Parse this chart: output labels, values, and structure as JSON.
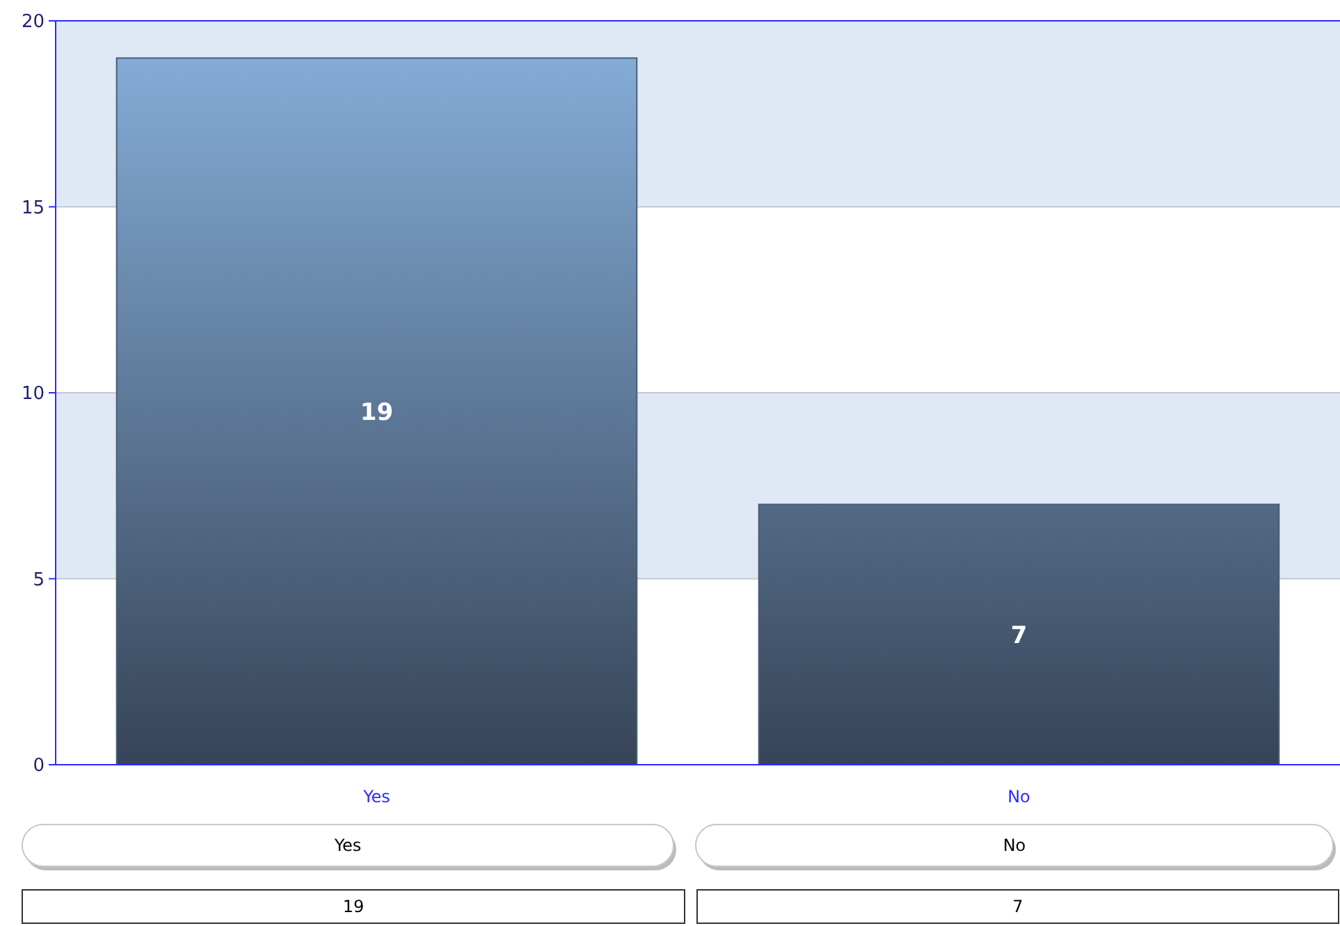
{
  "chart_data": {
    "type": "bar",
    "categories": [
      "Yes",
      "No"
    ],
    "values": [
      19,
      7
    ],
    "value_labels": [
      "19",
      "7"
    ],
    "color": "#4a5e78",
    "ylim": [
      0,
      20
    ],
    "yticks": [
      0,
      5,
      10,
      15,
      20
    ],
    "grid": true,
    "annotations": [
      "19",
      "7"
    ]
  }
}
